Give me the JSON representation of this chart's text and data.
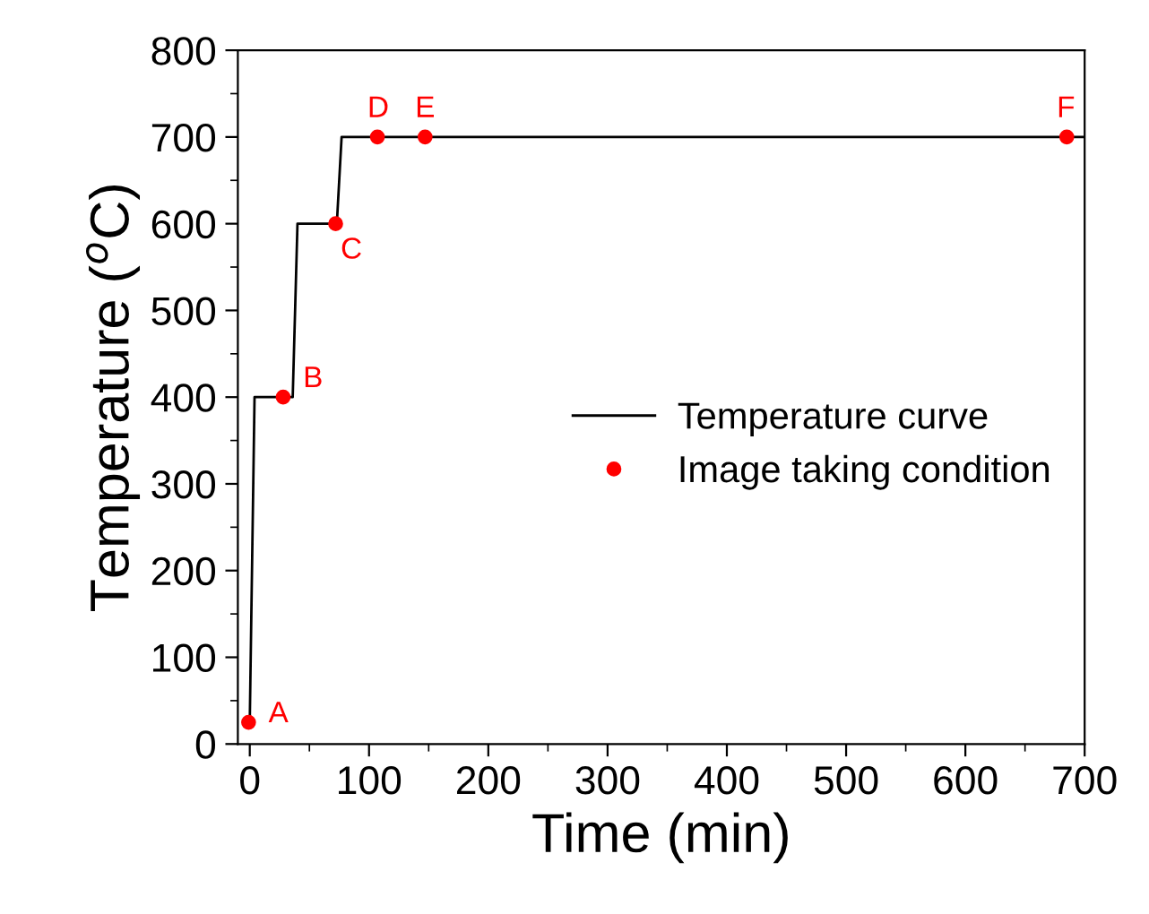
{
  "chart_data": {
    "type": "line",
    "xlabel": "Time (min)",
    "ylabel": "Temperature ($^{o}$C)",
    "xlim": [
      -10,
      700
    ],
    "ylim": [
      0,
      800
    ],
    "xticks": [
      0,
      100,
      200,
      300,
      400,
      500,
      600,
      700
    ],
    "yticks": [
      0,
      100,
      200,
      300,
      400,
      500,
      600,
      700,
      800
    ],
    "grid": false,
    "legend": "right",
    "series": [
      {
        "name": "Temperature curve",
        "color": "#000000",
        "marker": "none",
        "line_style": "solid",
        "x": [
          0,
          4,
          36,
          40,
          73,
          77,
          700
        ],
        "values": [
          25,
          400,
          400,
          600,
          600,
          700,
          700
        ]
      },
      {
        "name": "Image taking condition",
        "type": "scatter",
        "color": "#ff0000",
        "marker": "circle",
        "x": [
          -1,
          28,
          72,
          107,
          147,
          685
        ],
        "values": [
          25,
          400,
          600,
          700,
          700,
          700
        ]
      }
    ],
    "annotations": [
      {
        "text": "A",
        "x": -1,
        "y": 25
      },
      {
        "text": "B",
        "x": 28,
        "y": 400
      },
      {
        "text": "C",
        "x": 72,
        "y": 600
      },
      {
        "text": "D",
        "x": 107,
        "y": 700
      },
      {
        "text": "E",
        "x": 147,
        "y": 700
      },
      {
        "text": "F",
        "x": 685,
        "y": 700
      }
    ]
  }
}
